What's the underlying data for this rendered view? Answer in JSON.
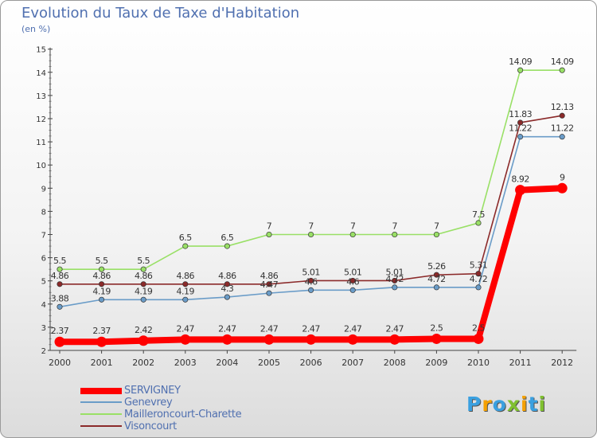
{
  "header": {
    "title": "Evolution du Taux de Taxe d'Habitation",
    "unit": "(en %)"
  },
  "chart_data": {
    "type": "line",
    "title": "Evolution du Taux de Taxe d'Habitation",
    "ylabel": "(en %)",
    "xlabel": "",
    "x": [
      "2000",
      "2001",
      "2002",
      "2003",
      "2004",
      "2005",
      "2006",
      "2007",
      "2008",
      "2009",
      "2010",
      "2011",
      "2012"
    ],
    "ylim": [
      2,
      15
    ],
    "yticks": [
      "2",
      "3",
      "4",
      "5",
      "6",
      "7",
      "8",
      "9",
      "10",
      "11",
      "12",
      "13",
      "14",
      "15"
    ],
    "grid": false,
    "legend": "bottom-left",
    "series": [
      {
        "name": "SERVIGNEY",
        "color": "#ff0000",
        "values": [
          2.37,
          2.37,
          2.42,
          2.47,
          2.47,
          2.47,
          2.47,
          2.47,
          2.47,
          2.5,
          2.5,
          8.92,
          9
        ],
        "labels": [
          "2.37",
          "2.37",
          "2.42",
          "2.47",
          "2.47",
          "2.47",
          "2.47",
          "2.47",
          "2.47",
          "2.5",
          "2.5",
          "8.92",
          "9"
        ]
      },
      {
        "name": "Genevrey",
        "color": "#6a9cc8",
        "values": [
          3.88,
          4.19,
          4.19,
          4.19,
          4.3,
          4.47,
          4.6,
          4.6,
          4.72,
          4.72,
          4.72,
          11.22,
          11.22
        ],
        "labels": [
          "3.88",
          "4.19",
          "4.19",
          "4.19",
          "4.3",
          "4.47",
          "4.6",
          "4.6",
          "4.72",
          "4.72",
          "4.72",
          "11.22",
          "11.22"
        ]
      },
      {
        "name": "Mailleroncourt-Charette",
        "color": "#99e066",
        "values": [
          5.5,
          5.5,
          5.5,
          6.5,
          6.5,
          7,
          7,
          7,
          7,
          7,
          7.5,
          14.09,
          14.09
        ],
        "labels": [
          "5.5",
          "5.5",
          "5.5",
          "6.5",
          "6.5",
          "7",
          "7",
          "7",
          "7",
          "7",
          "7.5",
          "14.09",
          "14.09"
        ]
      },
      {
        "name": "Visoncourt",
        "color": "#8b2a2a",
        "values": [
          4.86,
          4.86,
          4.86,
          4.86,
          4.86,
          4.86,
          5.01,
          5.01,
          5.01,
          5.26,
          5.31,
          11.83,
          12.13
        ],
        "labels": [
          "4.86",
          "4.86",
          "4.86",
          "4.86",
          "4.86",
          "4.86",
          "5.01",
          "5.01",
          "5.01",
          "5.26",
          "5.31",
          "11.83",
          "12.13"
        ]
      }
    ]
  },
  "logo": {
    "letters": [
      "P",
      "r",
      "o",
      "x",
      "i",
      "t",
      "i"
    ],
    "colors": [
      "#3aa0e0",
      "#f5a000",
      "#3aa0e0",
      "#80c030",
      "#f5a000",
      "#3aa0e0",
      "#80c030"
    ]
  }
}
